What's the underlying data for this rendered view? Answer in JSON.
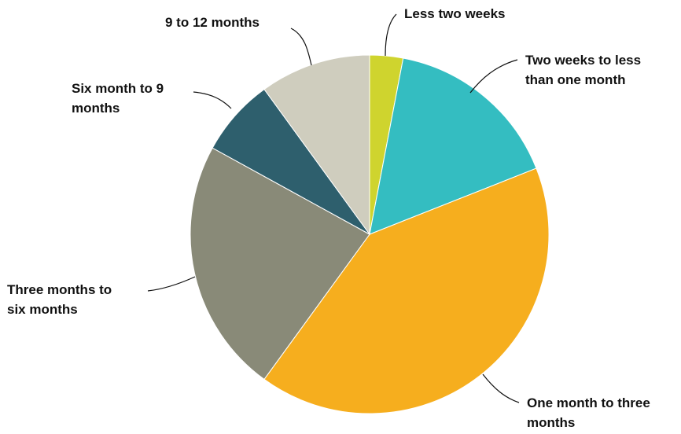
{
  "chart_data": {
    "type": "pie",
    "title": "",
    "slices": [
      {
        "label": "Less two weeks",
        "value": 3,
        "color": "#cfd42e"
      },
      {
        "label": "Two weeks to less than one month",
        "value": 16,
        "color": "#34bdc1"
      },
      {
        "label": "One month to three months",
        "value": 41,
        "color": "#f6ae1e"
      },
      {
        "label": "Three months to six months",
        "value": 23,
        "color": "#898a78"
      },
      {
        "label": "Six month to 9 months",
        "value": 7,
        "color": "#2e5f6d"
      },
      {
        "label": "9 to 12 months",
        "value": 10,
        "color": "#cfcdbe"
      }
    ],
    "start_angle_deg": 0,
    "direction": "clockwise",
    "legend": "none"
  }
}
